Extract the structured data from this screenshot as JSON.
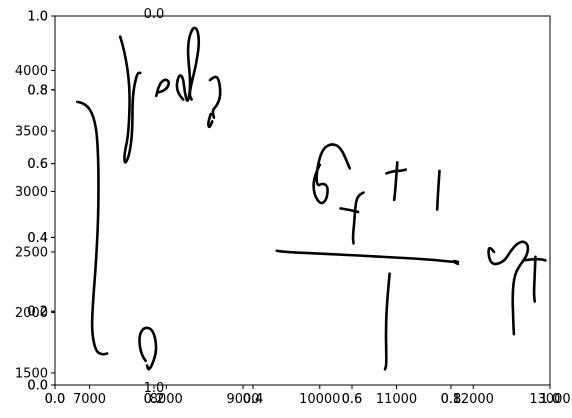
{
  "chart_data": {
    "type": "line",
    "title": "",
    "xlabel": "",
    "ylabel": "",
    "grid": false,
    "axes": [
      {
        "name": "overlay-axes-1",
        "xlim": [
          0,
          1
        ],
        "ylim": [
          0,
          1
        ],
        "x_ticks": [
          "0.0",
          "0.2",
          "0.4",
          "0.6",
          "0.8",
          "1.0"
        ],
        "y_ticks": [
          "0.0",
          "0.2",
          "0.4",
          "0.6",
          "0.8",
          "1.0"
        ]
      },
      {
        "name": "overlay-axes-2",
        "xlim": [
          0,
          1
        ],
        "ylim": [
          0,
          1
        ],
        "x_ticks": [
          "0.0",
          "0.2",
          "0.4",
          "0.6",
          "0.8",
          "1.0"
        ],
        "y_ticks": [
          "0.0",
          "0.2",
          "0.4",
          "0.6",
          "0.8",
          "1.0"
        ]
      },
      {
        "name": "ink-axes",
        "xlim": [
          6550,
          13000
        ],
        "ylim": [
          1400,
          4450
        ],
        "x_ticks": [
          "7000",
          "8000",
          "9000",
          "10000",
          "11000",
          "12000",
          "13000"
        ],
        "y_ticks": [
          "1500",
          "2000",
          "2500",
          "3000",
          "3500",
          "4000"
        ]
      }
    ],
    "stray_labels": [
      {
        "text": "0.0",
        "x": 0.2,
        "y": 1.0
      },
      {
        "text": "1.0",
        "x": 0.2,
        "y": 0.0
      }
    ],
    "series": [
      {
        "points": [
          [
            6840,
            3740
          ],
          [
            6950,
            3730
          ],
          [
            7060,
            3620
          ],
          [
            7110,
            3400
          ],
          [
            7120,
            2900
          ],
          [
            7090,
            2450
          ],
          [
            7040,
            2050
          ],
          [
            7030,
            1830
          ],
          [
            7080,
            1680
          ],
          [
            7160,
            1650
          ],
          [
            7230,
            1660
          ]
        ]
      },
      {
        "points": [
          [
            7400,
            4280
          ],
          [
            7460,
            4160
          ],
          [
            7530,
            3850
          ],
          [
            7510,
            3480
          ],
          [
            7450,
            3300
          ],
          [
            7460,
            3220
          ],
          [
            7520,
            3300
          ],
          [
            7560,
            3500
          ],
          [
            7560,
            3800
          ],
          [
            7620,
            3980
          ],
          [
            7660,
            3980
          ]
        ]
      },
      {
        "points": [
          [
            7730,
            1600
          ],
          [
            7670,
            1650
          ],
          [
            7640,
            1800
          ],
          [
            7710,
            1880
          ],
          [
            7830,
            1860
          ],
          [
            7880,
            1700
          ],
          [
            7820,
            1570
          ],
          [
            7770,
            1520
          ],
          [
            7750,
            1560
          ]
        ]
      },
      {
        "points": [
          [
            7870,
            3790
          ],
          [
            7900,
            3880
          ],
          [
            7980,
            3930
          ],
          [
            8040,
            3910
          ],
          [
            8020,
            3860
          ],
          [
            7960,
            3830
          ],
          [
            7900,
            3820
          ]
        ]
      },
      {
        "points": [
          [
            8220,
            3760
          ],
          [
            8160,
            3800
          ],
          [
            8130,
            3880
          ],
          [
            8170,
            3970
          ],
          [
            8220,
            3940
          ],
          [
            8240,
            3820
          ],
          [
            8280,
            3720
          ],
          [
            8320,
            3880
          ],
          [
            8280,
            4130
          ],
          [
            8290,
            4260
          ],
          [
            8350,
            4360
          ],
          [
            8410,
            4340
          ],
          [
            8430,
            4220
          ],
          [
            8390,
            4050
          ],
          [
            8330,
            3900
          ],
          [
            8300,
            3800
          ],
          [
            8330,
            3760
          ]
        ]
      },
      {
        "points": [
          [
            8570,
            3920
          ],
          [
            8640,
            3960
          ],
          [
            8690,
            3920
          ],
          [
            8710,
            3790
          ],
          [
            8660,
            3710
          ],
          [
            8600,
            3670
          ],
          [
            8620,
            3610
          ]
        ]
      },
      {
        "points": [
          [
            8580,
            3640
          ],
          [
            8540,
            3570
          ],
          [
            8560,
            3520
          ],
          [
            8600,
            3580
          ]
        ]
      },
      {
        "points": [
          [
            10000,
            3220
          ],
          [
            9920,
            3120
          ],
          [
            9920,
            2980
          ],
          [
            10010,
            2890
          ],
          [
            10090,
            2930
          ],
          [
            10110,
            3040
          ],
          [
            10040,
            3070
          ],
          [
            9960,
            3040
          ],
          [
            9960,
            3180
          ],
          [
            10030,
            3350
          ],
          [
            10160,
            3400
          ],
          [
            10280,
            3360
          ],
          [
            10390,
            3190
          ]
        ]
      },
      {
        "points": [
          [
            10570,
            2990
          ],
          [
            10490,
            2970
          ],
          [
            10460,
            2860
          ],
          [
            10450,
            2740
          ],
          [
            10430,
            2620
          ],
          [
            10440,
            2570
          ]
        ]
      },
      {
        "points": [
          [
            10270,
            2860
          ],
          [
            10370,
            2850
          ],
          [
            10500,
            2830
          ]
        ]
      },
      {
        "points": [
          [
            10870,
            3150
          ],
          [
            10960,
            3170
          ],
          [
            11060,
            3170
          ],
          [
            11120,
            3180
          ]
        ]
      },
      {
        "points": [
          [
            11010,
            3240
          ],
          [
            10990,
            3050
          ],
          [
            10970,
            2930
          ]
        ]
      },
      {
        "points": [
          [
            11560,
            3170
          ],
          [
            11540,
            2990
          ],
          [
            11530,
            2850
          ]
        ]
      },
      {
        "points": [
          [
            9440,
            2510
          ],
          [
            9500,
            2500
          ],
          [
            10200,
            2480
          ],
          [
            10800,
            2460
          ],
          [
            11400,
            2440
          ],
          [
            11850,
            2410
          ],
          [
            11720,
            2430
          ],
          [
            11800,
            2400
          ]
        ]
      },
      {
        "points": [
          [
            10910,
            2320
          ],
          [
            10870,
            2050
          ],
          [
            10860,
            1800
          ],
          [
            10870,
            1570
          ],
          [
            10850,
            1530
          ]
        ]
      },
      {
        "points": [
          [
            12270,
            2500
          ],
          [
            12200,
            2560
          ],
          [
            12200,
            2450
          ],
          [
            12260,
            2390
          ],
          [
            12400,
            2420
          ],
          [
            12480,
            2500
          ],
          [
            12570,
            2570
          ],
          [
            12660,
            2590
          ],
          [
            12720,
            2550
          ],
          [
            12700,
            2470
          ],
          [
            12620,
            2400
          ],
          [
            12540,
            2320
          ],
          [
            12510,
            2150
          ],
          [
            12520,
            1950
          ],
          [
            12530,
            1820
          ]
        ]
      },
      {
        "points": [
          [
            12660,
            2430
          ],
          [
            12770,
            2440
          ],
          [
            12880,
            2440
          ],
          [
            12940,
            2430
          ]
        ]
      },
      {
        "points": [
          [
            12810,
            2460
          ],
          [
            12800,
            2300
          ],
          [
            12790,
            2160
          ],
          [
            12800,
            2090
          ]
        ]
      }
    ]
  }
}
